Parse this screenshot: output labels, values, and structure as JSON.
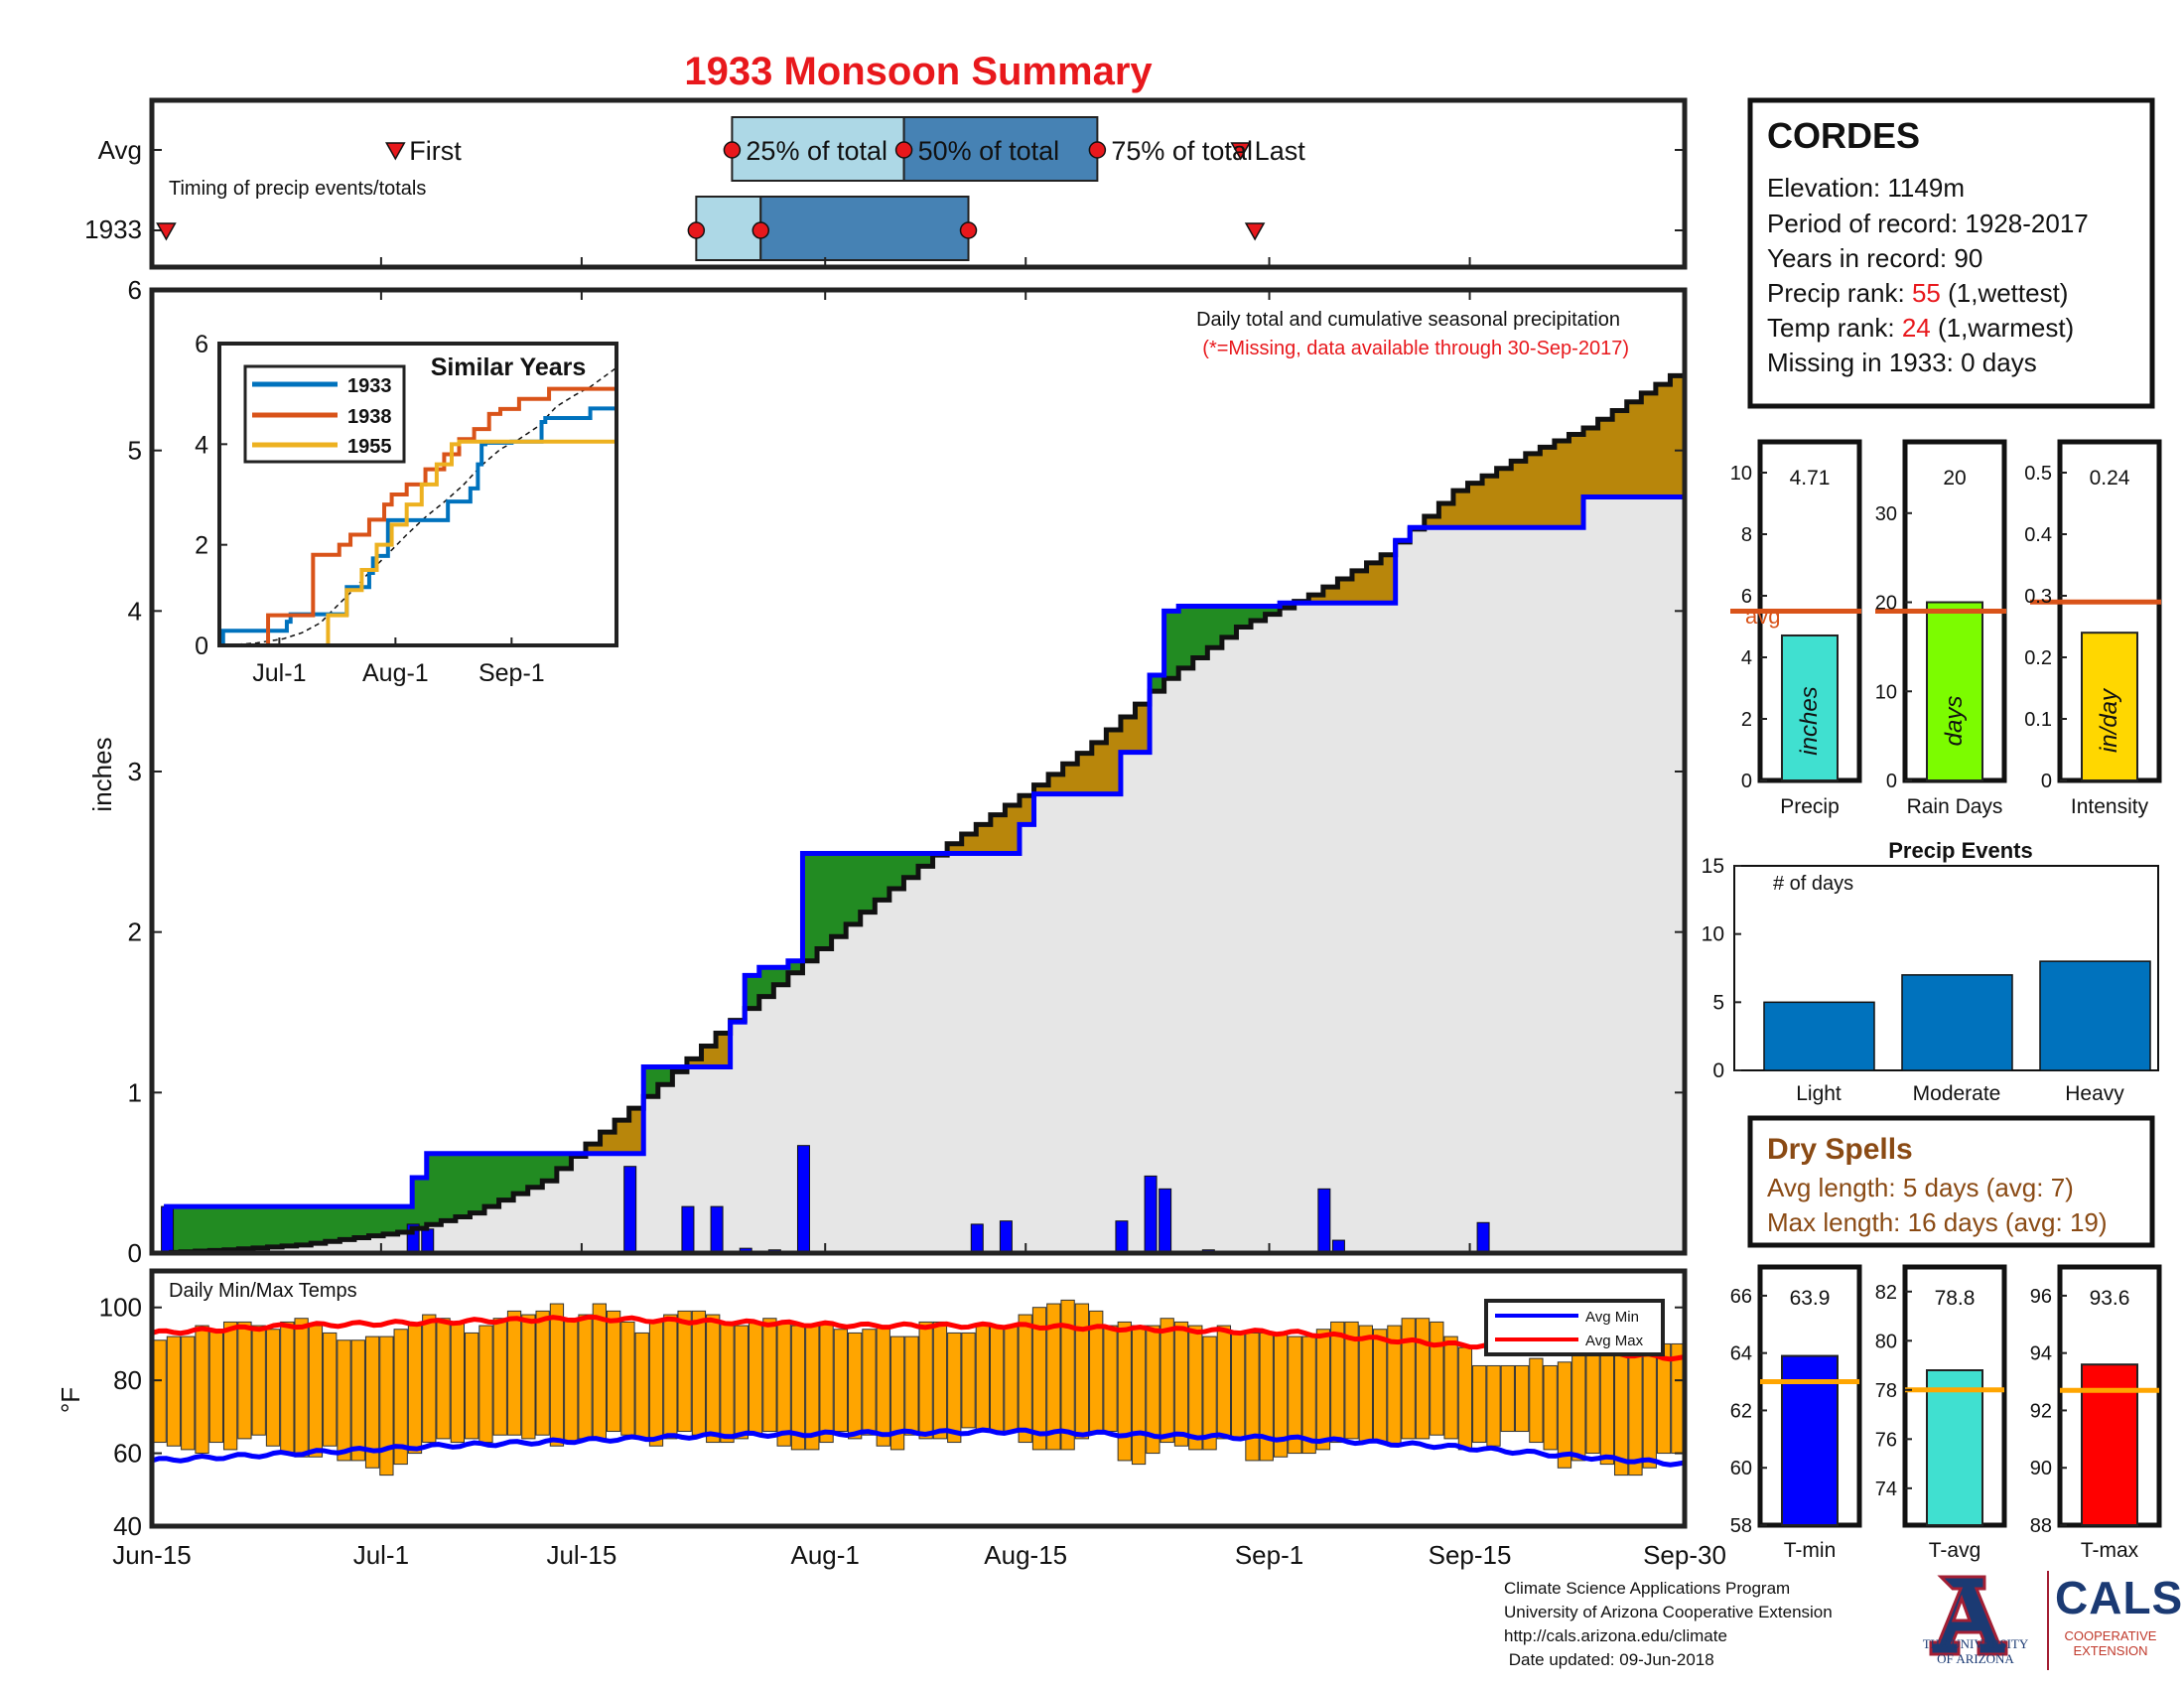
{
  "title": "1933 Monsoon Summary",
  "timing_panel": {
    "row_avg_label": "Avg",
    "row_year_label": "1933",
    "subtitle": "Timing of precip events/totals",
    "first_label": "First",
    "pct25_label": "25% of total",
    "pct50_label": "50% of total",
    "pct75_label": "75% of total",
    "last_label": "Last",
    "avg": {
      "first": 17,
      "p25": 40.5,
      "p50": 52.5,
      "p75": 66,
      "last": 76
    },
    "year": {
      "first": 1,
      "p25": 38,
      "p50": 42.5,
      "p75": 57,
      "last": 77
    }
  },
  "station": {
    "name": "CORDES",
    "elevation": "Elevation: 1149m",
    "period": "Period of record: 1928-2017",
    "years": "Years in record: 90",
    "precip_rank_prefix": "Precip rank: ",
    "precip_rank_value": "55",
    "precip_rank_suffix": " (1,wettest)",
    "temp_rank_prefix": "Temp rank: ",
    "temp_rank_value": "24",
    "temp_rank_suffix": " (1,warmest)",
    "missing": "Missing in 1933: 0 days"
  },
  "main_chart": {
    "note": "Daily total and cumulative seasonal precipitation",
    "missing_note": "(*=Missing, data available through 30-Sep-2017)",
    "ylabel": "inches",
    "y_ticks": [
      "0",
      "1",
      "2",
      "3",
      "4",
      "5",
      "6"
    ],
    "x_ticks": [
      "Jun-15",
      "Jul-1",
      "Jul-15",
      "Aug-1",
      "Aug-15",
      "Sep-1",
      "Sep-15",
      "Sep-30"
    ]
  },
  "inset": {
    "title": "Similar Years",
    "y_ticks": [
      "0",
      "2",
      "4",
      "6"
    ],
    "x_ticks": [
      "Jul-1",
      "Aug-1",
      "Sep-1"
    ],
    "legend": [
      "1933",
      "1938",
      "1955"
    ]
  },
  "small_bars": {
    "precip": {
      "label": "Precip",
      "unit": "inches",
      "value_text": "4.71",
      "avg_text": "avg",
      "ticks": [
        "0",
        "2",
        "4",
        "6",
        "8",
        "10"
      ]
    },
    "rain_days": {
      "label": "Rain Days",
      "unit": "days",
      "value_text": "20",
      "ticks": [
        "0",
        "10",
        "20",
        "30"
      ]
    },
    "intensity": {
      "label": "Intensity",
      "unit": "in/day",
      "value_text": "0.24",
      "ticks": [
        "0",
        "0.1",
        "0.2",
        "0.3",
        "0.4",
        "0.5"
      ]
    }
  },
  "precip_events": {
    "title": "Precip Events",
    "ylabel": "# of days",
    "ticks": [
      "0",
      "5",
      "10",
      "15"
    ]
  },
  "dry_spells": {
    "title": "Dry Spells",
    "avg_length": "Avg length: 5 days (avg: 7)",
    "max_length": "Max length: 16 days (avg: 19)"
  },
  "temp_chart": {
    "title": "Daily Min/Max Temps",
    "ylabel": "°F",
    "y_ticks": [
      "40",
      "60",
      "80",
      "100"
    ],
    "legend_min": "Avg Min",
    "legend_max": "Avg Max"
  },
  "temp_bars": {
    "tmin": {
      "label": "T-min",
      "value_text": "63.9",
      "ticks": [
        "58",
        "60",
        "62",
        "64",
        "66"
      ]
    },
    "tavg": {
      "label": "T-avg",
      "value_text": "78.8",
      "ticks": [
        "74",
        "76",
        "78",
        "80",
        "82"
      ]
    },
    "tmax": {
      "label": "T-max",
      "value_text": "93.6",
      "ticks": [
        "88",
        "90",
        "92",
        "94",
        "96"
      ]
    }
  },
  "footer": {
    "line1": "Climate Science Applications Program",
    "line2": "University of Arizona Cooperative Extension",
    "line3": "http://cals.arizona.edu/climate",
    "line4": " Date updated: 09-Jun-2018"
  },
  "logos": {
    "ua_line1": "THE UNIVERSITY",
    "ua_line2": "OF ARIZONA",
    "cals": "CALS",
    "cals_line1": "COOPERATIVE",
    "cals_line2": "EXTENSION"
  },
  "colors": {
    "title_red": "#e8181c",
    "year_blue": "#0000ff",
    "above_avg_green": "#228b22",
    "below_avg_brown": "#b8860b",
    "avg_fill": "#e6e6e6",
    "temp_bar": "#ffa500",
    "avg_min_line": "#0000ff",
    "avg_max_line": "#ff0000",
    "ref_line_orange": "#d95319",
    "timing_light": "#add8e6",
    "timing_dark": "#4682b4",
    "event_bar": "#0072bd",
    "series_1933": "#0072bd",
    "series_1938": "#d95319",
    "series_1955": "#edb120"
  },
  "chart_data": [
    {
      "type": "area",
      "id": "cumulative_precip",
      "title": "Daily total and cumulative seasonal precipitation",
      "ylabel": "inches",
      "xlim": [
        "Jun-15",
        "Sep-30"
      ],
      "ylim": [
        0,
        6
      ],
      "series": [
        {
          "name": "1933 cumulative",
          "x": [
            0,
            1,
            17,
            18,
            19,
            27,
            28,
            32,
            33,
            34,
            40,
            41,
            42,
            44,
            45,
            46,
            48,
            60,
            61,
            63,
            64,
            67,
            68,
            69,
            70,
            71,
            77,
            78,
            86,
            87,
            98,
            99
          ],
          "y": [
            0,
            0.29,
            0.29,
            0.47,
            0.62,
            0.62,
            0.62,
            0.62,
            0.62,
            1.16,
            1.44,
            1.73,
            1.78,
            1.82,
            2.49,
            2.49,
            2.49,
            2.67,
            2.86,
            2.86,
            2.86,
            3.12,
            3.12,
            3.6,
            4.0,
            4.03,
            4.03,
            4.05,
            4.44,
            4.52,
            4.52,
            4.71
          ]
        },
        {
          "name": "Average cumulative",
          "x": [
            0,
            5,
            10,
            17,
            22,
            27,
            30,
            35,
            40,
            45,
            50,
            55,
            60,
            65,
            70,
            75,
            80,
            85,
            90,
            95,
            99,
            106
          ],
          "y": [
            0,
            0.02,
            0.05,
            0.13,
            0.25,
            0.45,
            0.68,
            1.05,
            1.45,
            1.82,
            2.2,
            2.55,
            2.85,
            3.18,
            3.58,
            3.9,
            4.1,
            4.35,
            4.75,
            4.98,
            5.14,
            5.52
          ]
        }
      ],
      "daily_precip": {
        "x": [
          1,
          18,
          19,
          33,
          37,
          39,
          41,
          43,
          45,
          57,
          59,
          67,
          69,
          70,
          73,
          81,
          82,
          92
        ],
        "y": [
          0.29,
          0.18,
          0.15,
          0.54,
          0.29,
          0.29,
          0.03,
          0.02,
          0.67,
          0.18,
          0.2,
          0.2,
          0.48,
          0.4,
          0.02,
          0.4,
          0.08,
          0.19
        ]
      }
    },
    {
      "type": "line",
      "id": "similar_years",
      "title": "Similar Years",
      "ylim": [
        0,
        6
      ],
      "x_ticks": [
        "Jul-1",
        "Aug-1",
        "Sep-1"
      ],
      "series": [
        {
          "name": "1933",
          "x": [
            0,
            1,
            17,
            18,
            19,
            27,
            33,
            34,
            40,
            41,
            42,
            45,
            60,
            61,
            67,
            69,
            70,
            71,
            78,
            86,
            87,
            99,
            106
          ],
          "y": [
            0,
            0.29,
            0.29,
            0.47,
            0.62,
            0.62,
            0.62,
            1.16,
            1.44,
            1.73,
            1.78,
            2.49,
            2.49,
            2.86,
            3.12,
            3.6,
            4.0,
            4.03,
            4.05,
            4.44,
            4.52,
            4.71,
            4.71
          ]
        },
        {
          "name": "1938",
          "x": [
            0,
            12,
            13,
            24,
            25,
            30,
            32,
            35,
            40,
            44,
            46,
            50,
            55,
            60,
            64,
            68,
            72,
            75,
            80,
            88,
            106
          ],
          "y": [
            0,
            0,
            0.6,
            0.6,
            1.8,
            1.8,
            2.0,
            2.2,
            2.5,
            2.8,
            3.0,
            3.2,
            3.5,
            3.8,
            4.1,
            4.3,
            4.6,
            4.7,
            4.9,
            5.1,
            5.1
          ]
        },
        {
          "name": "1955",
          "x": [
            0,
            28,
            29,
            34,
            38,
            42,
            46,
            50,
            54,
            58,
            62,
            64,
            68,
            72,
            106
          ],
          "y": [
            0,
            0,
            0.6,
            1.1,
            1.5,
            2.0,
            2.4,
            2.8,
            3.2,
            3.6,
            4.0,
            4.05,
            4.05,
            4.05,
            4.05
          ]
        }
      ]
    },
    {
      "type": "bar",
      "id": "precip_total",
      "categories": [
        "Precip"
      ],
      "values": [
        4.71
      ],
      "reference_avg": 5.5,
      "ylim": [
        0,
        11
      ]
    },
    {
      "type": "bar",
      "id": "rain_days",
      "categories": [
        "Rain Days"
      ],
      "values": [
        20
      ],
      "reference_avg": 19,
      "ylim": [
        0,
        38
      ]
    },
    {
      "type": "bar",
      "id": "intensity",
      "categories": [
        "Intensity"
      ],
      "values": [
        0.24
      ],
      "reference_avg": 0.29,
      "ylim": [
        0,
        0.55
      ]
    },
    {
      "type": "bar",
      "id": "precip_events",
      "title": "Precip Events",
      "categories": [
        "Light",
        "Moderate",
        "Heavy"
      ],
      "values": [
        5,
        7,
        8
      ],
      "ylim": [
        0,
        15
      ]
    },
    {
      "type": "bar",
      "id": "daily_temps",
      "title": "Daily Min/Max Temps",
      "ylim": [
        40,
        110
      ],
      "tmin": [
        63,
        62,
        61,
        60,
        63,
        61,
        64,
        65,
        62,
        60,
        59,
        59,
        62,
        58,
        58,
        56,
        54,
        57,
        60,
        63,
        64,
        63,
        64,
        63,
        65,
        65,
        64,
        65,
        62,
        63,
        64,
        64,
        66,
        65,
        64,
        62,
        64,
        66,
        65,
        63,
        63,
        64,
        65,
        66,
        62,
        61,
        61,
        63,
        66,
        64,
        65,
        62,
        61,
        65,
        64,
        64,
        63,
        67,
        66,
        66,
        66,
        63,
        61,
        61,
        61,
        64,
        66,
        66,
        58,
        57,
        60,
        63,
        62,
        61,
        61,
        64,
        64,
        58,
        58,
        59,
        60,
        60,
        61,
        63,
        64,
        63,
        63,
        62,
        64,
        64,
        65,
        64,
        61,
        63,
        62,
        66,
        66,
        63,
        61,
        56,
        58,
        60,
        57,
        54,
        54,
        56,
        60,
        60
      ],
      "tmax": [
        91,
        92,
        92,
        95,
        94,
        96,
        96,
        95,
        94,
        96,
        97,
        95,
        93,
        91,
        91,
        92,
        92,
        94,
        95,
        98,
        97,
        96,
        93,
        95,
        97,
        99,
        98,
        99,
        101,
        97,
        98,
        101,
        99,
        96,
        93,
        96,
        98,
        99,
        99,
        98,
        96,
        95,
        96,
        97,
        96,
        95,
        95,
        96,
        94,
        93,
        94,
        95,
        92,
        92,
        96,
        96,
        93,
        93,
        95,
        95,
        95,
        98,
        100,
        101,
        102,
        101,
        99,
        95,
        96,
        95,
        95,
        97,
        96,
        95,
        92,
        95,
        93,
        93,
        93,
        93,
        92,
        92,
        94,
        96,
        96,
        95,
        94,
        95,
        97,
        97,
        96,
        92,
        89,
        84,
        84,
        84,
        84,
        86,
        84,
        85,
        88,
        88,
        89,
        88,
        90,
        90,
        90,
        90
      ],
      "avg_min": {
        "x": [
          0,
          20,
          40,
          60,
          80,
          90,
          100,
          107
        ],
        "y": [
          58,
          62,
          65,
          66,
          64,
          62,
          59,
          57
        ]
      },
      "avg_max": {
        "x": [
          0,
          10,
          20,
          30,
          40,
          50,
          60,
          70,
          80,
          90,
          100,
          107
        ],
        "y": [
          93,
          95,
          96,
          97,
          96,
          95,
          95,
          94,
          93,
          90,
          88,
          86
        ]
      }
    },
    {
      "type": "bar",
      "id": "temp_summary",
      "categories": [
        "T-min",
        "T-avg",
        "T-max"
      ],
      "values": [
        63.9,
        78.8,
        93.6
      ],
      "reference_avg": [
        63.0,
        78.0,
        92.7
      ]
    }
  ]
}
